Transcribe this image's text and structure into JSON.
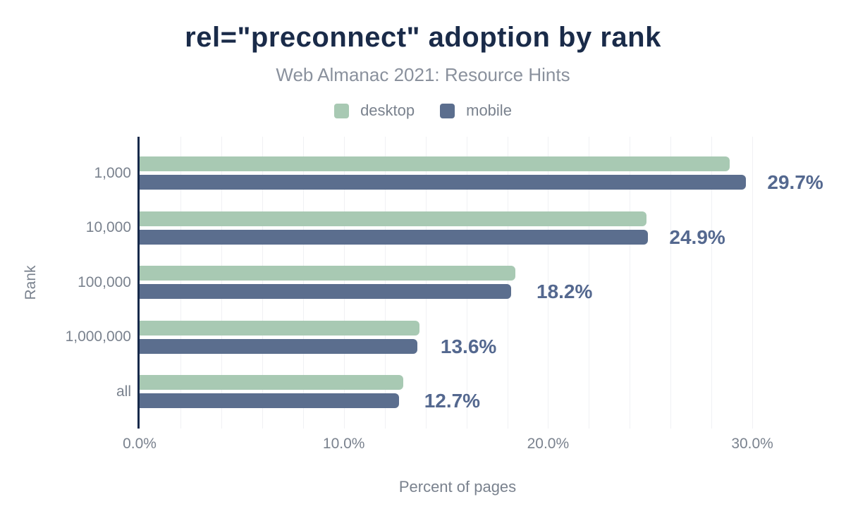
{
  "chart": {
    "title": "rel=\"preconnect\" adoption by rank",
    "subtitle": "Web Almanac 2021: Resource Hints",
    "x_axis_title": "Percent of pages",
    "y_axis_title": "Rank"
  },
  "chart_data": {
    "type": "bar",
    "orientation": "horizontal",
    "title": "rel=\"preconnect\" adoption by rank",
    "subtitle": "Web Almanac 2021: Resource Hints",
    "xlabel": "Percent of pages",
    "ylabel": "Rank",
    "categories": [
      "1,000",
      "10,000",
      "100,000",
      "1,000,000",
      "all"
    ],
    "series": [
      {
        "name": "desktop",
        "color": "#a8c9b3",
        "values": [
          28.9,
          24.8,
          18.4,
          13.7,
          12.9
        ]
      },
      {
        "name": "mobile",
        "color": "#5b6e8e",
        "values": [
          29.7,
          24.9,
          18.2,
          13.6,
          12.7
        ]
      }
    ],
    "value_labels": [
      "29.7%",
      "24.9%",
      "18.2%",
      "13.6%",
      "12.7%"
    ],
    "value_labels_series": "mobile",
    "x_ticks": [
      "0.0%",
      "10.0%",
      "20.0%",
      "30.0%"
    ],
    "x_tick_values": [
      0,
      10,
      20,
      30
    ],
    "xlim": [
      0,
      31.1
    ],
    "grid_step": 2,
    "grid": "vertical-only",
    "legend_position": "top"
  },
  "theme": {
    "background": "#ffffff",
    "title": "#1a2b49",
    "subtitle": "#8a919d",
    "muted": "#7a828e",
    "grid": "#f0f1f4",
    "axis": "#16294a",
    "value_label": "#54688f",
    "desktop": "#a8c9b3",
    "mobile": "#5b6e8e"
  }
}
